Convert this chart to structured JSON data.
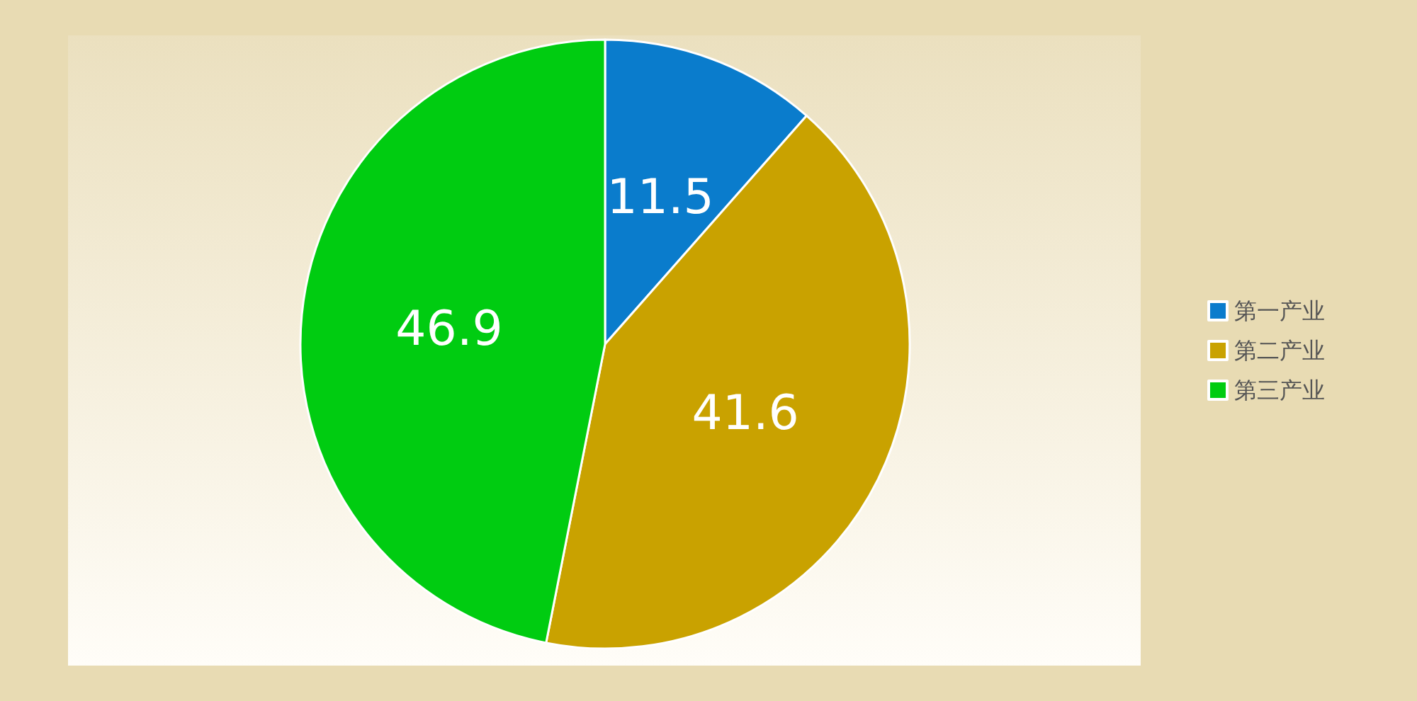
{
  "chart_data": {
    "type": "pie",
    "categories": [
      "第一产业",
      "第二产业",
      "第三产业"
    ],
    "values": [
      11.5,
      41.6,
      46.9
    ],
    "colors": [
      "#0a7ccc",
      "#c9a200",
      "#00cc11"
    ],
    "data_labels": true,
    "legend": "right"
  }
}
